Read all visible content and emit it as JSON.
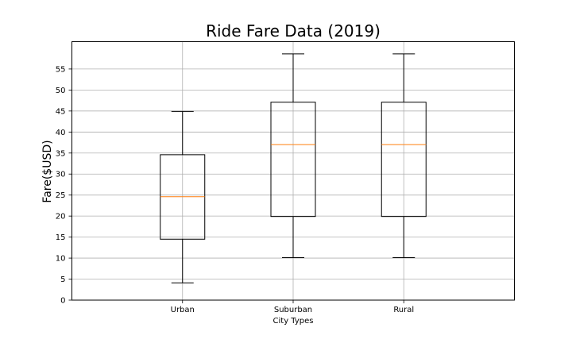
{
  "chart_data": {
    "type": "box",
    "title": "Ride Fare Data (2019)",
    "xlabel": "City Types",
    "ylabel": "Fare($USD)",
    "categories": [
      "Urban",
      "Suburban",
      "Rural"
    ],
    "boxes": [
      {
        "name": "Urban",
        "whisker_low": 4.1,
        "q1": 14.5,
        "median": 24.6,
        "q3": 34.6,
        "whisker_high": 44.9
      },
      {
        "name": "Suburban",
        "whisker_low": 10.1,
        "q1": 19.9,
        "median": 37.0,
        "q3": 47.1,
        "whisker_high": 58.6
      },
      {
        "name": "Rural",
        "whisker_low": 10.1,
        "q1": 19.9,
        "median": 37.0,
        "q3": 47.1,
        "whisker_high": 58.6
      }
    ],
    "ylim": [
      0,
      61.5
    ],
    "yticks": [
      0,
      5,
      10,
      15,
      20,
      25,
      30,
      35,
      40,
      45,
      50,
      55
    ],
    "grid": true,
    "colors": {
      "box": "#000000",
      "median": "#ff7f0e",
      "grid": "#b0b0b0"
    }
  }
}
